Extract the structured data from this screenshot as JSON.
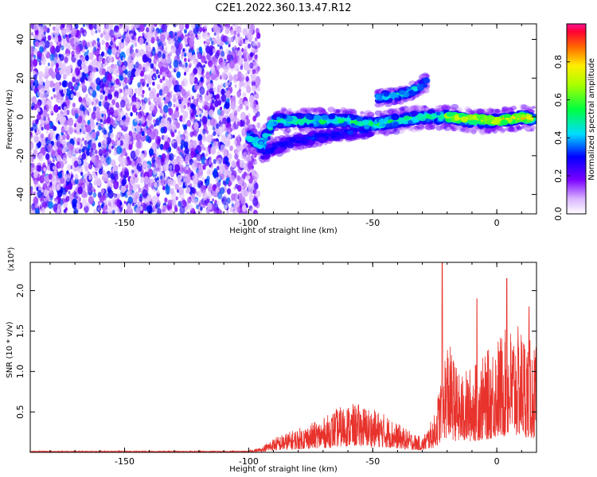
{
  "title": "C2E1.2022.360.13.47.R12",
  "chart_data": [
    {
      "type": "heatmap",
      "xlabel": "Height of straight line (km)",
      "ylabel": "Frequency (Hz)",
      "xlim": [
        -188,
        16
      ],
      "ylim": [
        -50,
        48
      ],
      "x_ticks": [
        -150,
        -100,
        -50,
        0
      ],
      "x_tick_labels": [
        "-150",
        "-100",
        "-50",
        "0"
      ],
      "y_ticks": [
        -40,
        -20,
        0,
        20,
        40
      ],
      "y_tick_labels": [
        "-40",
        "-20",
        "0",
        "20",
        "40"
      ],
      "colorbar": {
        "label": "Normalized spectral amplitude",
        "range": [
          0,
          1
        ],
        "ticks": [
          0.0,
          0.2,
          0.4,
          0.6,
          0.8
        ],
        "tick_labels": [
          "0.0",
          "0.2",
          "0.4",
          "0.6",
          "0.8"
        ],
        "colormap": "rainbow"
      },
      "features": {
        "noise_region_x": [
          -188,
          -100
        ],
        "main_ridge": {
          "x": [
            -100,
            -95,
            -90,
            -80,
            -70,
            -60,
            -50,
            -40,
            -30,
            -20,
            -10,
            0,
            10,
            15
          ],
          "y": [
            -10,
            -15,
            -2,
            -2,
            -2,
            -2,
            -4,
            -2,
            0,
            0,
            -2,
            -2,
            0,
            -1
          ]
        },
        "upper_branch": {
          "x": [
            -48,
            -40,
            -35,
            -28
          ],
          "y": [
            10,
            11,
            13,
            18
          ]
        },
        "lower_branch": {
          "x": [
            -95,
            -90,
            -80,
            -70,
            -60,
            -50
          ],
          "y": [
            -20,
            -16,
            -12,
            -10,
            -8,
            -7
          ]
        }
      }
    },
    {
      "type": "line",
      "xlabel": "Height of straight line (km)",
      "ylabel": "SNR (10 * v/v)",
      "y_multiplier": "(x10⁴)",
      "xlim": [
        -188,
        16
      ],
      "ylim": [
        0,
        2.35
      ],
      "x_ticks": [
        -150,
        -100,
        -50,
        0
      ],
      "x_tick_labels": [
        "-150",
        "-100",
        "-50",
        "0"
      ],
      "y_ticks": [
        0.5,
        1.0,
        1.5,
        2.0
      ],
      "y_tick_labels": [
        "0.5",
        "1.0",
        "1.5",
        "2.0"
      ],
      "series": [
        {
          "color": "#e8322c",
          "envelope_x": [
            -188,
            -150,
            -100,
            -95,
            -90,
            -85,
            -80,
            -75,
            -70,
            -65,
            -60,
            -55,
            -50,
            -45,
            -40,
            -35,
            -30,
            -25,
            -22,
            -20,
            -15,
            -10,
            -5,
            0,
            5,
            10,
            15
          ],
          "envelope_y": [
            0.01,
            0.01,
            0.02,
            0.05,
            0.15,
            0.2,
            0.25,
            0.3,
            0.35,
            0.45,
            0.5,
            0.5,
            0.45,
            0.4,
            0.3,
            0.22,
            0.15,
            0.4,
            0.9,
            1.2,
            0.8,
            0.9,
            1.0,
            1.2,
            1.3,
            1.3,
            1.1
          ],
          "peaks_x": [
            -22,
            -8,
            4,
            13
          ],
          "peaks_y": [
            2.35,
            1.9,
            2.15,
            1.8
          ]
        }
      ]
    }
  ]
}
